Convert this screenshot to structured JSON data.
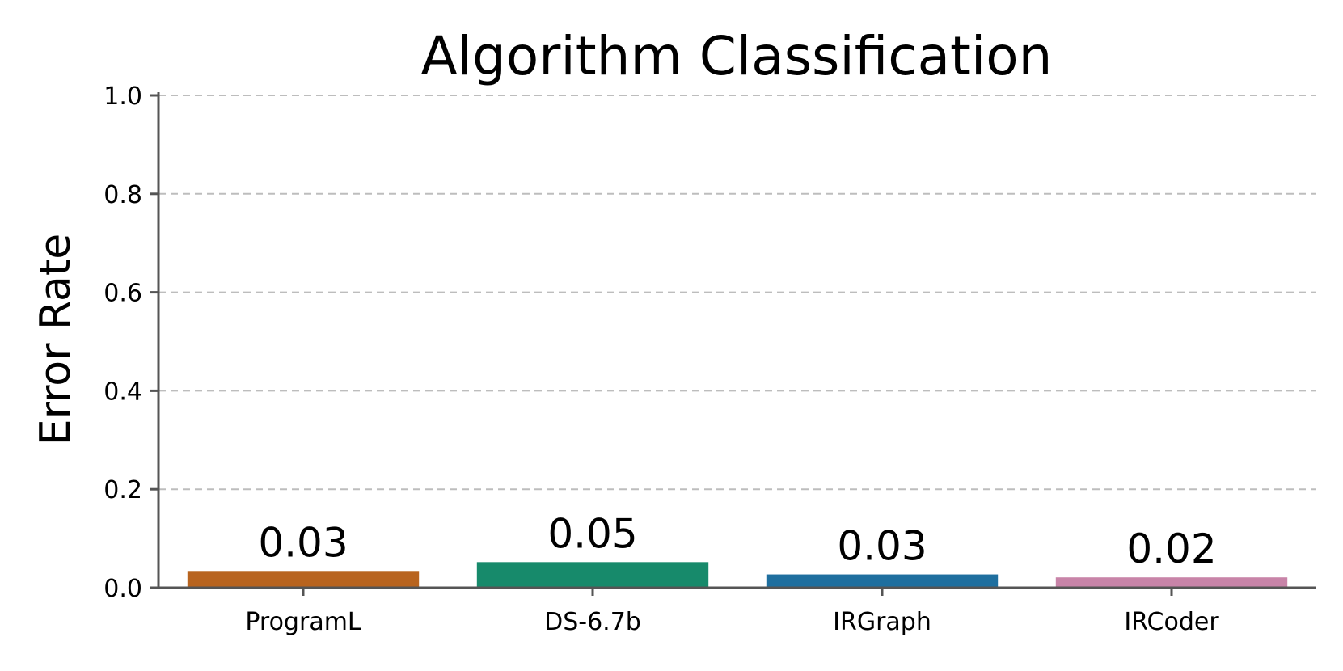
{
  "chart_data": {
    "type": "bar",
    "title": "Algorithm Classification",
    "xlabel": "",
    "ylabel": "Error Rate",
    "categories": [
      "ProgramL",
      "DS-6.7b",
      "IRGraph",
      "IRCoder"
    ],
    "values": [
      0.034,
      0.052,
      0.027,
      0.021
    ],
    "value_labels": [
      "0.03",
      "0.05",
      "0.03",
      "0.02"
    ],
    "colors": [
      "#b8641f",
      "#178a6b",
      "#1f6f9f",
      "#c884a8"
    ],
    "ylim": [
      0,
      1.0
    ],
    "yticks": [
      0.0,
      0.2,
      0.4,
      0.6,
      0.8,
      1.0
    ],
    "ytick_labels": [
      "0.0",
      "0.2",
      "0.4",
      "0.6",
      "0.8",
      "1.0"
    ],
    "grid": "y-dashed",
    "legend": "none"
  }
}
